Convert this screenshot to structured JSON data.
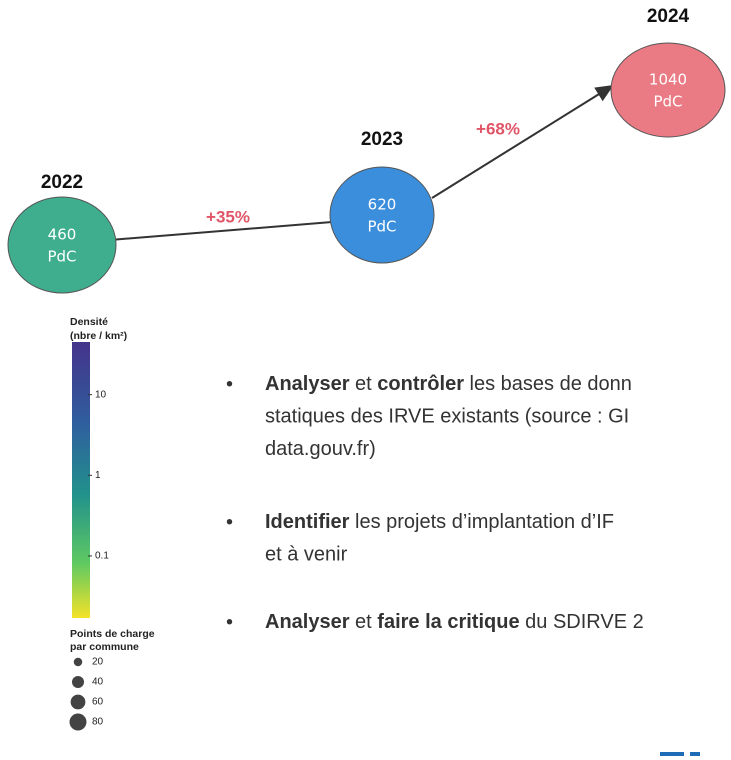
{
  "timeline": {
    "nodes": [
      {
        "year": "2022",
        "value": 460,
        "unit": "PdC",
        "color": "#3fae8e"
      },
      {
        "year": "2023",
        "value": 620,
        "unit": "PdC",
        "color": "#3b8edb"
      },
      {
        "year": "2024",
        "value": 1040,
        "unit": "PdC",
        "color": "#ea7a84"
      }
    ],
    "growth": [
      "+35%",
      "+68%"
    ]
  },
  "legend": {
    "density": {
      "title": "Densité",
      "unit": "(nbre / km²)",
      "log": true,
      "lim": [
        0.017,
        45
      ],
      "ticks": [
        10,
        1,
        0.1
      ]
    },
    "points": {
      "title": "Points de charge",
      "subtitle": "par commune",
      "sizes": [
        20,
        40,
        60,
        80
      ]
    }
  },
  "bullets": [
    {
      "lines": [
        [
          {
            "text": "Analyser",
            "bold": true
          },
          {
            "text": " et "
          },
          {
            "text": "contrôler",
            "bold": true
          },
          {
            "text": " les bases de donn"
          }
        ],
        [
          {
            "text": "statiques des IRVE existants (source : GI"
          }
        ],
        [
          {
            "text": "data.gouv.fr)"
          }
        ]
      ]
    },
    {
      "lines": [
        [
          {
            "text": "Identifier",
            "bold": true
          },
          {
            "text": " les projets d’implantation d’IF"
          }
        ],
        [
          {
            "text": "et à venir"
          }
        ]
      ]
    },
    {
      "lines": [
        [
          {
            "text": "Analyser",
            "bold": true
          },
          {
            "text": " et "
          },
          {
            "text": "faire la critique",
            "bold": true
          },
          {
            "text": " du SDIRVE 2"
          }
        ]
      ]
    }
  ]
}
